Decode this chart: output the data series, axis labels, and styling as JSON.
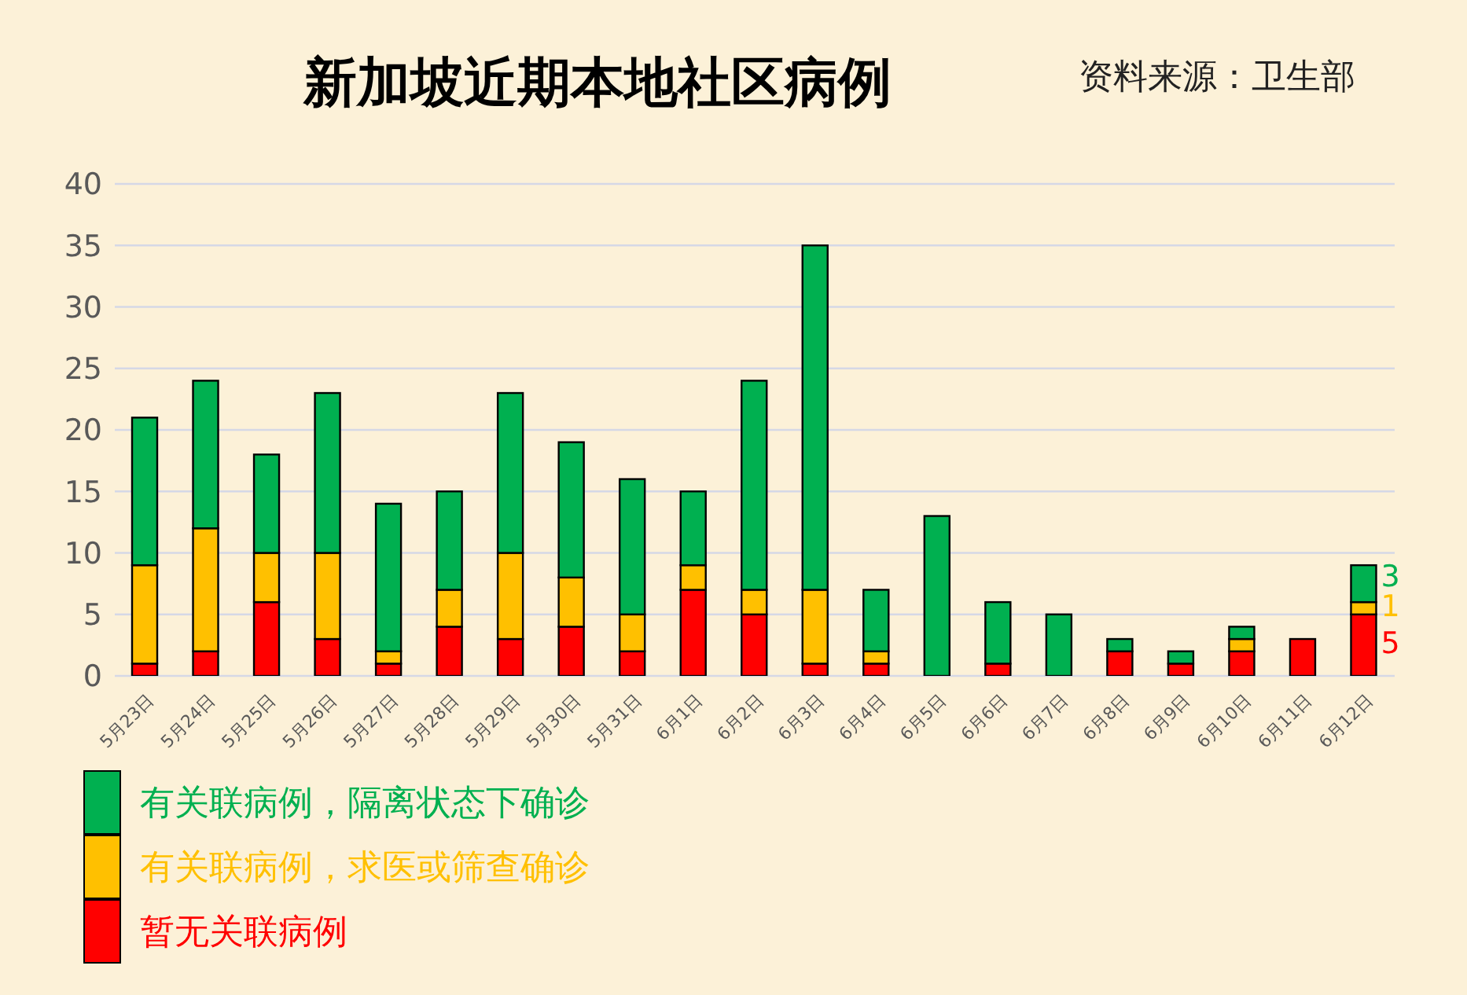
{
  "chart_data": {
    "type": "bar",
    "title": "新加坡近期本地社区病例",
    "annotations": [
      "资料来源：卫生部"
    ],
    "categories": [
      "5月23日",
      "5月24日",
      "5月25日",
      "5月26日",
      "5月27日",
      "5月28日",
      "5月29日",
      "5月30日",
      "5月31日",
      "6月1日",
      "6月2日",
      "6月3日",
      "6月4日",
      "6月5日",
      "6月6日",
      "6月7日",
      "6月8日",
      "6月9日",
      "6月10日",
      "6月11日",
      "6月12日"
    ],
    "stacked": true,
    "series": [
      {
        "name": "暂无关联病例",
        "color": "#ff0000",
        "values": [
          1,
          2,
          6,
          3,
          1,
          4,
          3,
          4,
          2,
          7,
          5,
          1,
          1,
          0,
          1,
          0,
          2,
          1,
          2,
          3,
          5
        ],
        "value_labels": [
          null,
          null,
          null,
          null,
          null,
          null,
          null,
          null,
          null,
          null,
          null,
          null,
          null,
          null,
          null,
          null,
          null,
          null,
          null,
          null,
          "5"
        ]
      },
      {
        "name": "有关联病例，求医或筛查确诊",
        "color": "#ffc000",
        "values": [
          8,
          10,
          4,
          7,
          1,
          3,
          7,
          4,
          3,
          2,
          2,
          6,
          1,
          0,
          0,
          0,
          0,
          0,
          1,
          0,
          1
        ],
        "value_labels": [
          null,
          null,
          null,
          null,
          null,
          null,
          null,
          null,
          null,
          null,
          null,
          null,
          null,
          null,
          null,
          null,
          null,
          null,
          null,
          null,
          "1"
        ]
      },
      {
        "name": "有关联病例，隔离状态下确诊",
        "color": "#00b050",
        "values": [
          12,
          12,
          8,
          13,
          12,
          8,
          13,
          11,
          11,
          6,
          17,
          28,
          5,
          13,
          5,
          5,
          1,
          1,
          1,
          0,
          3
        ],
        "value_labels": [
          null,
          null,
          null,
          null,
          null,
          null,
          null,
          null,
          null,
          null,
          null,
          null,
          null,
          null,
          null,
          null,
          null,
          null,
          null,
          null,
          "3"
        ]
      }
    ],
    "ylim": [
      0,
      40
    ],
    "yticks": [
      0,
      5,
      10,
      15,
      20,
      25,
      30,
      35,
      40
    ],
    "grid": "y",
    "legend": "bottom left"
  }
}
